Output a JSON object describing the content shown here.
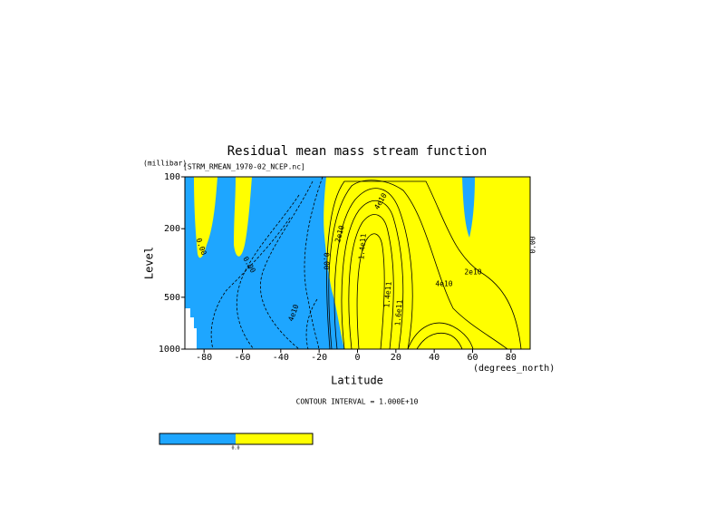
{
  "chart_data": {
    "type": "contour",
    "title": "Residual mean mass stream function",
    "subtitle": "[STRM_RMEAN_1970-02_NCEP.nc]",
    "x_label": "Latitude",
    "x_units": "(degrees_north)",
    "y_label": "Level",
    "y_units": "(millibar)",
    "xlim": [
      -90,
      90
    ],
    "xticks": [
      -80,
      -60,
      -40,
      -20,
      0,
      20,
      40,
      60,
      80
    ],
    "ylim": [
      1000,
      100
    ],
    "yticks": [
      100,
      200,
      500,
      1000
    ],
    "y_log": true,
    "annotation": "CONTOUR INTERVAL = 1.000E+10",
    "contour_labels": [
      "0.00",
      "0.00",
      "4e10",
      "0.00",
      "2e10",
      "4e10",
      "1.4e11",
      "1.4e11",
      "1.6e11",
      "4e10",
      "2e10",
      "0.00"
    ],
    "colors": [
      "#1ea6ff",
      "#ffff00"
    ],
    "colorbar_label": "0.0"
  }
}
